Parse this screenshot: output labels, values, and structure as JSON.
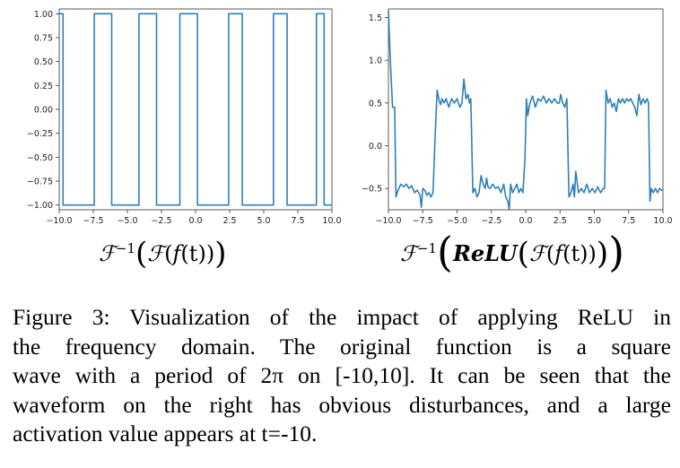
{
  "chart_data": [
    {
      "type": "line",
      "formula": {
        "symbol_f": "ℱ",
        "sup": "−1",
        "inner_f": "ℱ",
        "func": "f",
        "var": "t"
      },
      "xlim": [
        -10.0,
        10.0
      ],
      "ylim": [
        -1.05,
        1.05
      ],
      "x_ticks": [
        "−10.0",
        "−7.5",
        "−5.0",
        "−2.5",
        "0.0",
        "2.5",
        "5.0",
        "7.5",
        "10.0"
      ],
      "x_tick_values": [
        -10,
        -7.5,
        -5,
        -2.5,
        0,
        2.5,
        5,
        7.5,
        10
      ],
      "y_ticks": [
        "1.00",
        "0.75",
        "0.50",
        "0.25",
        "0.00",
        "−0.25",
        "−0.50",
        "−0.75",
        "−1.00"
      ],
      "y_tick_values": [
        1.0,
        0.75,
        0.5,
        0.25,
        0.0,
        -0.25,
        -0.5,
        -0.75,
        -1.0
      ],
      "color": "#2f7fb8",
      "series": [
        {
          "x": [
            -10.0,
            -9.72,
            -9.72,
            -7.43,
            -7.43,
            -6.15,
            -6.15,
            -4.15,
            -4.15,
            -2.86,
            -2.86,
            -1.15,
            -1.15,
            0.14,
            0.14,
            2.43,
            2.43,
            3.43,
            3.43,
            5.71,
            5.71,
            6.71,
            6.71,
            8.86,
            8.86,
            9.43,
            9.43,
            10.0
          ],
          "y": [
            1.0,
            1.0,
            -1.0,
            -1.0,
            1.0,
            1.0,
            -1.0,
            -1.0,
            1.0,
            1.0,
            -1.0,
            -1.0,
            1.0,
            1.0,
            -1.0,
            -1.0,
            1.0,
            1.0,
            -1.0,
            -1.0,
            1.0,
            1.0,
            -1.0,
            -1.0,
            1.0,
            1.0,
            -1.0,
            -1.0
          ]
        }
      ]
    },
    {
      "type": "line",
      "formula": {
        "symbol_f": "ℱ",
        "sup": "−1",
        "relu": "ReLU",
        "inner_f": "ℱ",
        "func": "f",
        "var": "t"
      },
      "xlim": [
        -10.0,
        10.0
      ],
      "ylim": [
        -0.75,
        1.6
      ],
      "x_ticks": [
        "−10.0",
        "−7.5",
        "−5.0",
        "−2.5",
        "0.0",
        "2.5",
        "5.0",
        "7.5",
        "10.0"
      ],
      "x_tick_values": [
        -10,
        -7.5,
        -5,
        -2.5,
        0,
        2.5,
        5,
        7.5,
        10
      ],
      "y_ticks": [
        "1.5",
        "1.0",
        "0.5",
        "0.0",
        "−0.5"
      ],
      "y_tick_values": [
        1.5,
        1.0,
        0.5,
        0.0,
        -0.5
      ],
      "color": "#2f7fb8",
      "series": [
        {
          "x": [
            -10.0,
            -9.85,
            -9.7,
            -9.55,
            -9.45,
            -9.3,
            -9.1,
            -8.9,
            -8.7,
            -8.5,
            -8.3,
            -8.1,
            -7.9,
            -7.7,
            -7.6,
            -7.5,
            -7.35,
            -7.2,
            -7.05,
            -6.9,
            -6.75,
            -6.6,
            -6.45,
            -6.3,
            -6.2,
            -6.1,
            -5.95,
            -5.8,
            -5.6,
            -5.4,
            -5.2,
            -5.0,
            -4.8,
            -4.65,
            -4.5,
            -4.35,
            -4.2,
            -4.1,
            -4.0,
            -3.85,
            -3.7,
            -3.55,
            -3.4,
            -3.25,
            -3.1,
            -2.95,
            -2.85,
            -2.75,
            -2.6,
            -2.4,
            -2.2,
            -2.0,
            -1.8,
            -1.6,
            -1.45,
            -1.3,
            -1.2,
            -1.1,
            -0.95,
            -0.8,
            -0.65,
            -0.5,
            -0.35,
            -0.2,
            -0.05,
            0.05,
            0.15,
            0.3,
            0.5,
            0.7,
            0.9,
            1.1,
            1.3,
            1.5,
            1.7,
            1.9,
            2.1,
            2.3,
            2.45,
            2.55,
            2.7,
            2.85,
            3.0,
            3.15,
            3.3,
            3.45,
            3.55,
            3.65,
            3.85,
            4.05,
            4.25,
            4.45,
            4.65,
            4.85,
            5.05,
            5.25,
            5.45,
            5.65,
            5.75,
            5.85,
            6.0,
            6.15,
            6.3,
            6.45,
            6.6,
            6.75,
            6.9,
            7.05,
            7.2,
            7.35,
            7.5,
            7.65,
            7.8,
            7.95,
            8.1,
            8.25,
            8.4,
            8.55,
            8.7,
            8.85,
            8.95,
            9.05,
            9.15,
            9.3,
            9.45,
            9.6,
            9.75,
            9.9,
            10.0
          ],
          "y": [
            1.58,
            0.95,
            0.45,
            0.45,
            -0.6,
            -0.52,
            -0.45,
            -0.48,
            -0.45,
            -0.5,
            -0.47,
            -0.55,
            -0.52,
            -0.58,
            -0.72,
            -0.5,
            -0.52,
            -0.58,
            -0.55,
            -0.6,
            -0.55,
            0.1,
            0.65,
            0.52,
            0.48,
            0.55,
            0.5,
            0.55,
            0.45,
            0.55,
            0.5,
            0.55,
            0.45,
            0.5,
            0.78,
            0.55,
            0.6,
            0.5,
            0.55,
            -0.55,
            -0.5,
            -0.6,
            -0.55,
            -0.35,
            -0.45,
            -0.5,
            -0.38,
            -0.48,
            -0.5,
            -0.45,
            -0.5,
            -0.48,
            -0.55,
            -0.45,
            -0.6,
            -0.65,
            -0.75,
            -0.45,
            -0.55,
            -0.5,
            -0.45,
            -0.55,
            -0.5,
            -0.55,
            -0.15,
            0.55,
            0.35,
            0.5,
            0.58,
            0.45,
            0.55,
            0.52,
            0.58,
            0.5,
            0.55,
            0.5,
            0.55,
            0.5,
            0.5,
            0.6,
            0.5,
            0.45,
            0.55,
            -0.6,
            -0.55,
            -0.45,
            -0.6,
            -0.3,
            -0.55,
            -0.5,
            -0.55,
            -0.45,
            -0.55,
            -0.5,
            -0.55,
            -0.48,
            -0.55,
            -0.5,
            -0.5,
            0.65,
            0.5,
            0.55,
            0.45,
            0.5,
            0.4,
            0.55,
            0.5,
            0.55,
            0.5,
            0.55,
            0.52,
            0.55,
            0.5,
            0.45,
            0.35,
            0.6,
            0.48,
            0.55,
            0.5,
            0.55,
            0.5,
            -0.65,
            -0.5,
            -0.55,
            -0.5,
            -0.55,
            -0.5,
            -0.52,
            -0.52
          ]
        }
      ]
    }
  ],
  "caption": {
    "lines": [
      "Figure 3: Visualization of the impact of applying ReLU in",
      "the frequency domain. The original function is a square",
      "wave with a period of 2π on [-10,10]. It can be seen that the",
      "waveform on the right has obvious disturbances, and a large",
      "activation value appears at t=-10."
    ]
  }
}
